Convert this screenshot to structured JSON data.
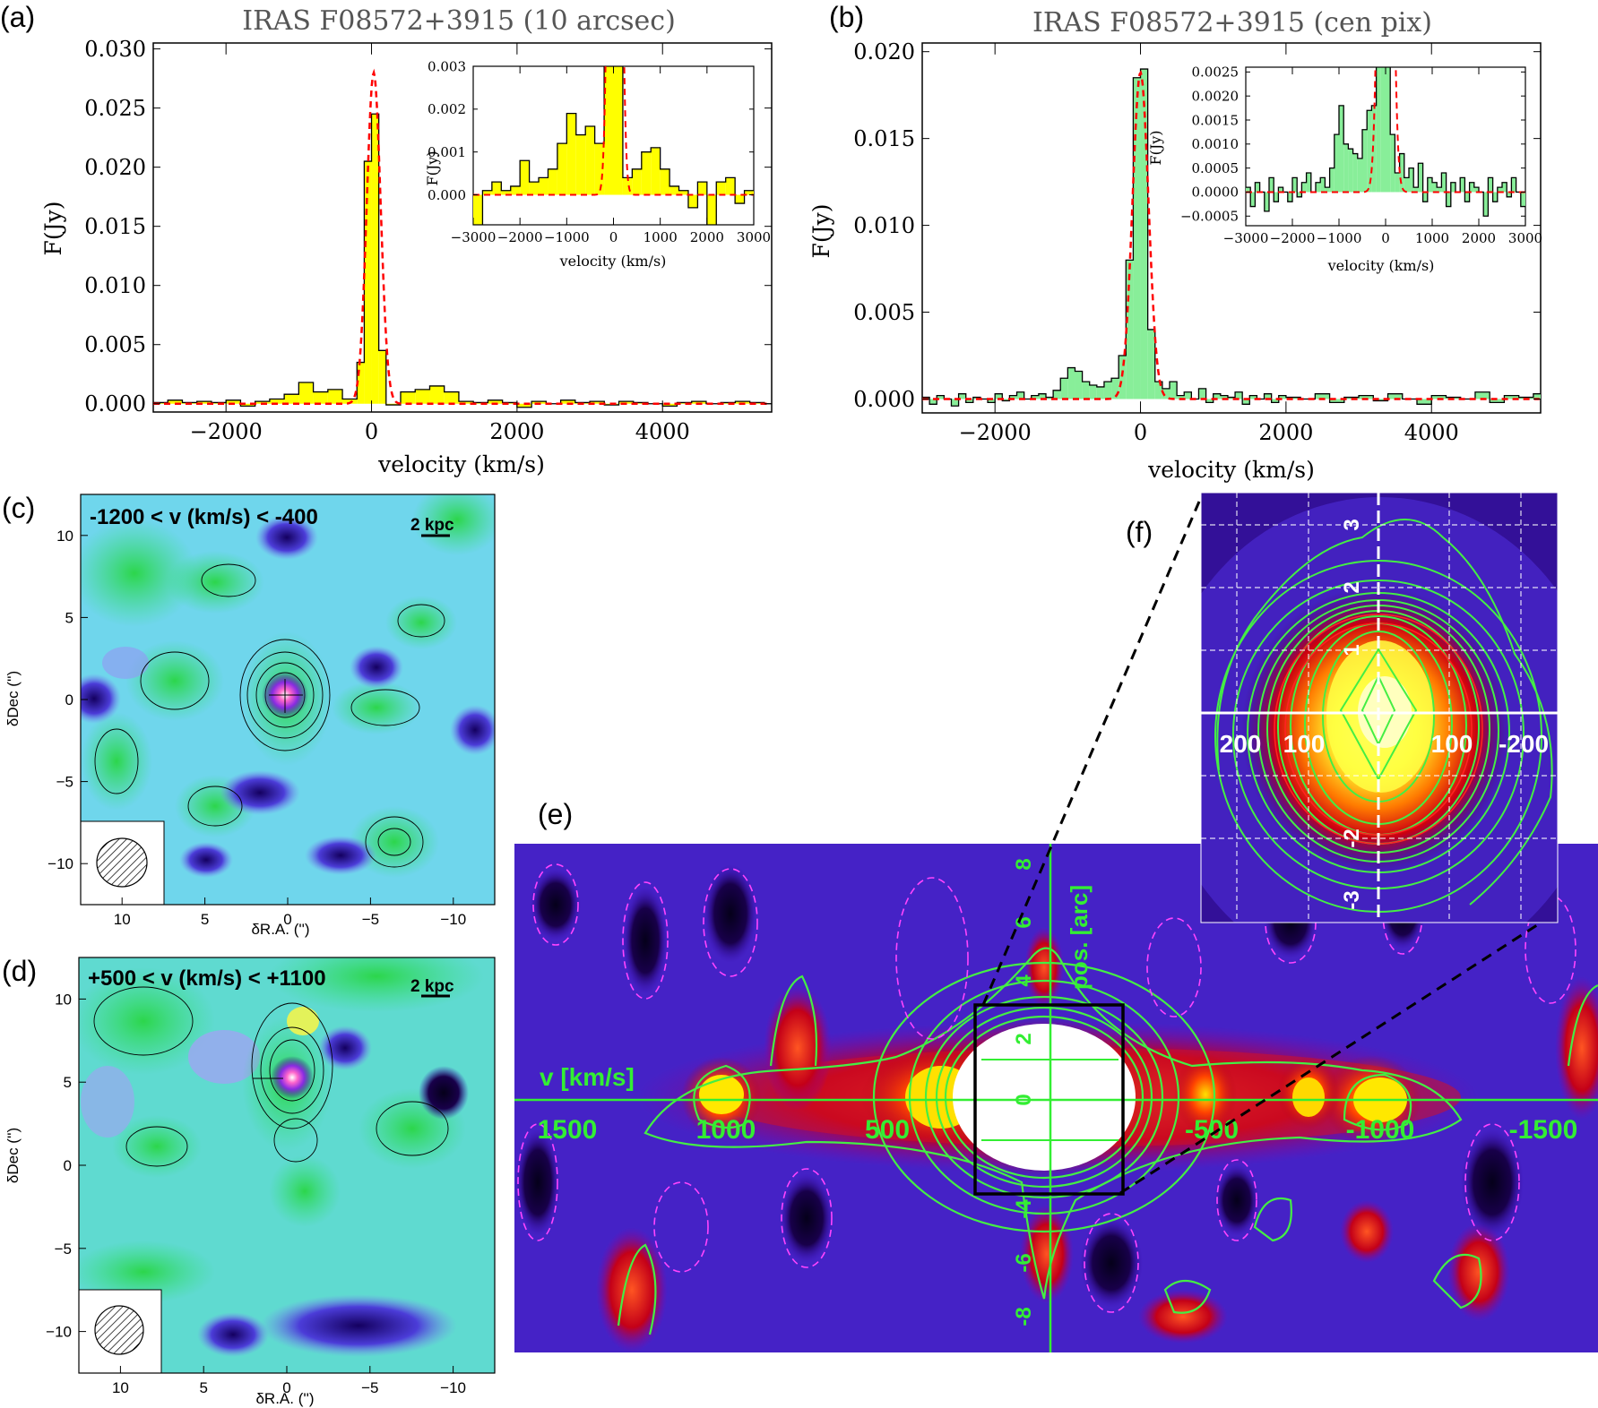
{
  "panels": {
    "a": {
      "letter": "(a)"
    },
    "b": {
      "letter": "(b)"
    },
    "c": {
      "letter": "(c)"
    },
    "d": {
      "letter": "(d)"
    },
    "e": {
      "letter": "(e)"
    },
    "f": {
      "letter": "(f)"
    }
  },
  "chart_data": [
    {
      "id": "a",
      "type": "line",
      "title": "IRAS F08572+3915 (10 arcsec)",
      "xlabel": "velocity (km/s)",
      "ylabel": "F(Jy)",
      "xlim": [
        -3000,
        5500
      ],
      "ylim": [
        -0.0007,
        0.0305
      ],
      "xticks": [
        -2000,
        0,
        2000,
        4000
      ],
      "xtick_labels": [
        "−2000",
        "0",
        "2000",
        "4000"
      ],
      "yticks": [
        0.0,
        0.005,
        0.01,
        0.015,
        0.02,
        0.025,
        0.03
      ],
      "ytick_labels": [
        "0.000",
        "0.005",
        "0.010",
        "0.015",
        "0.020",
        "0.025",
        "0.030"
      ],
      "fill_color": "#ffff00",
      "fit_color": "#ff0000",
      "series": [
        {
          "kind": "histogram",
          "x": [
            -3000,
            -2800,
            -2600,
            -2400,
            -2200,
            -2000,
            -1800,
            -1600,
            -1400,
            -1200,
            -1000,
            -800,
            -600,
            -400,
            -200,
            -100,
            0,
            100,
            200,
            400,
            600,
            800,
            1000,
            1200,
            1400,
            1600,
            1800,
            2000,
            2200,
            2400,
            2600,
            2800,
            3000,
            3200,
            3400,
            3600,
            3800,
            4000,
            4200,
            4400,
            4600,
            4800,
            5000,
            5200,
            5400
          ],
          "y": [
            0.0001,
            0.0003,
            0.0001,
            0.0002,
            0.0001,
            0.0003,
            -0.0002,
            0.0002,
            0.0004,
            0.0008,
            0.0018,
            0.001,
            0.0012,
            0.0004,
            0.0035,
            0.0205,
            0.0245,
            0.0045,
            -0.0001,
            0.001,
            0.0012,
            0.0015,
            0.001,
            0.0002,
            0.0001,
            0.0003,
            0.0001,
            -0.0003,
            0.0002,
            0.0,
            0.0003,
            0.0001,
            0.0002,
            -0.0001,
            0.0002,
            0.0001,
            0.0,
            -0.0002,
            0.0001,
            0.0002,
            0.0,
            0.0001,
            0.0002,
            0.0001,
            0.0
          ]
        },
        {
          "kind": "gaussian-fit",
          "center": 30,
          "sigma": 95,
          "amplitude": 0.028
        }
      ],
      "inset": {
        "xlabel": "velocity (km/s)",
        "ylabel": "F(Jy)",
        "xlim": [
          -3000,
          3000
        ],
        "ylim": [
          -0.0007,
          0.003
        ],
        "xticks": [
          -3000,
          -2000,
          -1000,
          0,
          1000,
          2000,
          3000
        ],
        "xtick_labels": [
          "−3000",
          "−2000",
          "−1000",
          "0",
          "1000",
          "2000",
          "3000"
        ],
        "yticks": [
          0.0,
          0.001,
          0.002,
          0.003
        ],
        "ytick_labels": [
          "0.000",
          "0.001",
          "0.002",
          "0.003"
        ],
        "x": [
          -3000,
          -2800,
          -2600,
          -2400,
          -2200,
          -2000,
          -1800,
          -1600,
          -1400,
          -1200,
          -1000,
          -800,
          -600,
          -400,
          -200,
          0,
          200,
          400,
          600,
          800,
          1000,
          1200,
          1400,
          1600,
          1800,
          2000,
          2200,
          2400,
          2600,
          2800
        ],
        "y": [
          -0.0007,
          0.0001,
          0.0003,
          0.0001,
          0.0002,
          0.0008,
          0.0003,
          0.0004,
          0.0006,
          0.0012,
          0.0019,
          0.0014,
          0.0016,
          0.0012,
          0.003,
          0.003,
          0.0004,
          0.0006,
          0.001,
          0.0011,
          0.0006,
          0.0002,
          0.0001,
          -0.0003,
          0.0003,
          -0.0007,
          0.0003,
          0.0004,
          -0.0002,
          0.0001
        ]
      }
    },
    {
      "id": "b",
      "type": "line",
      "title": "IRAS F08572+3915 (cen pix)",
      "xlabel": "velocity (km/s)",
      "ylabel": "F(Jy)",
      "xlim": [
        -3000,
        5500
      ],
      "ylim": [
        -0.0008,
        0.0205
      ],
      "xticks": [
        -2000,
        0,
        2000,
        4000
      ],
      "xtick_labels": [
        "−2000",
        "0",
        "2000",
        "4000"
      ],
      "yticks": [
        0.0,
        0.005,
        0.01,
        0.015,
        0.02
      ],
      "ytick_labels": [
        "0.000",
        "0.005",
        "0.010",
        "0.015",
        "0.020"
      ],
      "fill_color": "#88ee99",
      "fit_color": "#ff0000",
      "series": [
        {
          "kind": "histogram",
          "x": [
            -3000,
            -2900,
            -2800,
            -2700,
            -2600,
            -2500,
            -2400,
            -2300,
            -2200,
            -2100,
            -2000,
            -1900,
            -1800,
            -1700,
            -1600,
            -1500,
            -1400,
            -1300,
            -1200,
            -1100,
            -1000,
            -900,
            -800,
            -700,
            -600,
            -500,
            -400,
            -300,
            -200,
            -100,
            0,
            100,
            200,
            300,
            400,
            500,
            600,
            700,
            800,
            900,
            1000,
            1100,
            1200,
            1300,
            1400,
            1500,
            1600,
            1700,
            1800,
            1900,
            2000,
            2200,
            2400,
            2600,
            2800,
            3000,
            3200,
            3400,
            3600,
            3800,
            4000,
            4200,
            4400,
            4600,
            4800,
            5000,
            5200,
            5400
          ],
          "y": [
            0.0001,
            -0.0003,
            0.0002,
            0.0,
            -0.0004,
            0.0003,
            -0.0002,
            0.0001,
            0.0,
            -0.0002,
            0.0003,
            -0.0001,
            0.0002,
            0.0004,
            0.0,
            0.0002,
            0.0003,
            0.0001,
            0.0005,
            0.0012,
            0.0018,
            0.0016,
            0.001,
            0.0008,
            0.0007,
            0.001,
            0.0012,
            0.0025,
            0.008,
            0.0185,
            0.019,
            0.004,
            0.001,
            0.0006,
            0.001,
            0.0002,
            0.0004,
            0.0,
            0.0006,
            -0.0002,
            0.0003,
            0.0002,
            0.0001,
            0.0004,
            -0.0003,
            0.0002,
            0.0,
            0.0003,
            -0.0002,
            0.0002,
            0.0001,
            0.0,
            0.0003,
            -0.0002,
            0.0001,
            0.0002,
            -0.0001,
            0.0003,
            0.0,
            -0.0003,
            0.0002,
            0.0001,
            0.0,
            0.0004,
            -0.0002,
            0.0002,
            0.0001,
            0.0003
          ]
        },
        {
          "kind": "gaussian-fit",
          "center": 0,
          "sigma": 110,
          "amplitude": 0.0188
        }
      ],
      "inset": {
        "xlabel": "velocity (km/s)",
        "ylabel": "F(Jy)",
        "xlim": [
          -3000,
          3000
        ],
        "ylim": [
          -0.0007,
          0.0026
        ],
        "xticks": [
          -3000,
          -2000,
          -1000,
          0,
          1000,
          2000,
          3000
        ],
        "xtick_labels": [
          "−3000",
          "−2000",
          "−1000",
          "0",
          "1000",
          "2000",
          "3000"
        ],
        "yticks": [
          -0.0005,
          0.0,
          0.0005,
          0.001,
          0.0015,
          0.002,
          0.0025
        ],
        "ytick_labels": [
          "−0.0005",
          "0.0000",
          "0.0005",
          "0.0010",
          "0.0015",
          "0.0020",
          "0.0025"
        ],
        "x": [
          -3000,
          -2900,
          -2800,
          -2700,
          -2600,
          -2500,
          -2400,
          -2300,
          -2200,
          -2100,
          -2000,
          -1900,
          -1800,
          -1700,
          -1600,
          -1500,
          -1400,
          -1300,
          -1200,
          -1100,
          -1000,
          -900,
          -800,
          -700,
          -600,
          -500,
          -400,
          -300,
          -200,
          -100,
          0,
          100,
          200,
          300,
          400,
          500,
          600,
          700,
          800,
          900,
          1000,
          1100,
          1200,
          1300,
          1400,
          1500,
          1600,
          1700,
          1800,
          1900,
          2000,
          2100,
          2200,
          2300,
          2400,
          2500,
          2600,
          2700,
          2800,
          2900
        ],
        "y": [
          0.0001,
          -0.0003,
          0.0002,
          0.0,
          -0.0004,
          0.0003,
          -0.0002,
          0.0001,
          0.0,
          -0.0002,
          0.0003,
          -0.0001,
          0.0002,
          0.0004,
          0.0,
          0.0002,
          0.0003,
          0.0001,
          0.0005,
          0.0012,
          0.0018,
          0.001,
          0.0009,
          0.0008,
          0.0007,
          0.0013,
          0.0017,
          0.0018,
          0.0026,
          0.0026,
          0.0026,
          0.0012,
          0.0004,
          0.0008,
          0.0003,
          0.0005,
          0.0001,
          0.0006,
          -0.0002,
          0.0003,
          0.0002,
          0.0001,
          0.0004,
          -0.0003,
          0.0002,
          0.0,
          0.0003,
          -0.0002,
          0.0002,
          0.0001,
          0.0,
          -0.0005,
          0.0003,
          -0.0002,
          0.0001,
          0.0002,
          -0.0001,
          0.0003,
          0.0,
          -0.0003
        ]
      }
    },
    {
      "id": "c",
      "type": "heatmap",
      "label": "-1200 < v (km/s)  < -400",
      "scalebar": "2 kpc",
      "xlabel": "δR.A. ('')",
      "ylabel": "δDec ('')",
      "xlim": [
        12.5,
        -12.5
      ],
      "ylim": [
        -12.5,
        12.5
      ],
      "xticks": [
        10,
        5,
        0,
        -5,
        -10
      ],
      "xtick_labels": [
        "10",
        "5",
        "0",
        "−5",
        "−10"
      ],
      "yticks": [
        10,
        5,
        0,
        -5,
        -10
      ],
      "ytick_labels": [
        "10",
        "5",
        "0",
        "−5",
        "−10"
      ]
    },
    {
      "id": "d",
      "type": "heatmap",
      "label": "+500 < v (km/s)  < +1100",
      "scalebar": "2 kpc",
      "xlabel": "δR.A. ('')",
      "ylabel": "δDec ('')",
      "xlim": [
        12.5,
        -12.5
      ],
      "ylim": [
        -12.5,
        12.5
      ],
      "xticks": [
        10,
        5,
        0,
        -5,
        -10
      ],
      "xtick_labels": [
        "10",
        "5",
        "0",
        "−5",
        "−10"
      ],
      "yticks": [
        10,
        5,
        0,
        -5,
        -10
      ],
      "ytick_labels": [
        "10",
        "5",
        "0",
        "−5",
        "−10"
      ]
    },
    {
      "id": "e",
      "type": "heatmap",
      "xlabel": "v [km/s]",
      "ylabel": "pos. [arc]",
      "xtick_labels": [
        "1500",
        "1000",
        "500",
        "-500",
        "-1000",
        "-1500"
      ],
      "ytick_labels": [
        "8",
        "6",
        "4",
        "2",
        "0",
        "-4",
        "-6",
        "-8"
      ]
    },
    {
      "id": "f",
      "type": "heatmap",
      "xtick_labels": [
        "200",
        "100",
        "100",
        "-200"
      ],
      "ytick_labels": [
        "3",
        "2",
        "1",
        "-2",
        "-3"
      ]
    }
  ]
}
